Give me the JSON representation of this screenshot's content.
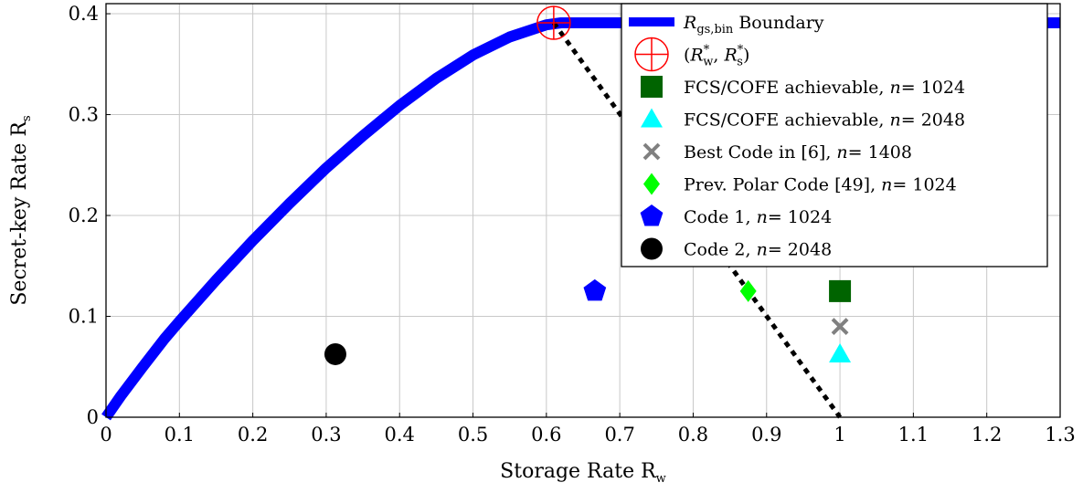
{
  "chart_data": {
    "type": "scatter",
    "title": "",
    "xlabel": "Storage Rate R",
    "xlabel_sub": "w",
    "ylabel": "Secret-key Rate R",
    "ylabel_sub": "s",
    "xlim": [
      0,
      1.3
    ],
    "ylim": [
      0,
      0.41
    ],
    "xticks": [
      0,
      0.1,
      0.2,
      0.3,
      0.4,
      0.5,
      0.6,
      0.7,
      0.8,
      0.9,
      1,
      1.1,
      1.2,
      1.3
    ],
    "xtick_labels": [
      "0",
      "0.1",
      "0.2",
      "0.3",
      "0.4",
      "0.5",
      "0.6",
      "0.7",
      "0.8",
      "0.9",
      "1",
      "1.1",
      "1.2",
      "1.3"
    ],
    "yticks": [
      0,
      0.1,
      0.2,
      0.3,
      0.4
    ],
    "ytick_labels": [
      "0",
      "0.1",
      "0.2",
      "0.3",
      "0.4"
    ],
    "grid": true,
    "legend_position": "top-right",
    "boundary": {
      "name_main": "R",
      "name_sub": "gs,bin",
      "name_rest": "Boundary",
      "color": "#0000ff",
      "x": [
        0,
        0.02,
        0.05,
        0.08,
        0.1,
        0.15,
        0.2,
        0.25,
        0.3,
        0.35,
        0.4,
        0.45,
        0.5,
        0.55,
        0.6,
        0.62,
        0.65,
        0.7,
        0.8,
        0.9,
        1.0,
        1.1,
        1.2,
        1.3
      ],
      "y": [
        0,
        0.021,
        0.05,
        0.078,
        0.095,
        0.136,
        0.175,
        0.212,
        0.247,
        0.279,
        0.309,
        0.336,
        0.359,
        0.377,
        0.389,
        0.391,
        0.391,
        0.391,
        0.391,
        0.391,
        0.391,
        0.391,
        0.391,
        0.391
      ]
    },
    "dotted_line": {
      "x": [
        0.61,
        1.0
      ],
      "y": [
        0.391,
        0.0
      ],
      "color": "#000000"
    },
    "points": [
      {
        "name": "(R*w, R*s)",
        "label_parts": [
          "(",
          "R",
          "*",
          "w",
          ", ",
          "R",
          "*",
          "s",
          ")"
        ],
        "marker": "oplus",
        "color": "#ff0000",
        "x": 0.61,
        "y": 0.391
      },
      {
        "name": "FCS/COFE achievable, n = 1024",
        "label_text": "FCS/COFE achievable, ",
        "label_n": "n",
        "label_val": "= 1024",
        "marker": "square",
        "color": "#006400",
        "x": 1.0,
        "y": 0.125
      },
      {
        "name": "FCS/COFE achievable, n = 2048",
        "label_text": "FCS/COFE achievable, ",
        "label_n": "n",
        "label_val": "= 2048",
        "marker": "triangle",
        "color": "#00ffff",
        "x": 1.0,
        "y": 0.0625
      },
      {
        "name": "Best Code in [6], n = 1408",
        "label_text": "Best Code in [6], ",
        "label_n": "n",
        "label_val": "= 1408",
        "marker": "cross",
        "color": "#808080",
        "x": 1.0,
        "y": 0.09
      },
      {
        "name": "Prev. Polar Code [49], n = 1024",
        "label_text": "Prev. Polar Code [49], ",
        "label_n": "n",
        "label_val": "= 1024",
        "marker": "diamond",
        "color": "#00ff00",
        "x": 0.875,
        "y": 0.125
      },
      {
        "name": "Code 1, n = 1024",
        "label_text": "Code 1, ",
        "label_n": "n",
        "label_val": "= 1024",
        "marker": "pentagon",
        "color": "#0000ff",
        "x": 0.666,
        "y": 0.125
      },
      {
        "name": "Code 2, n = 2048",
        "label_text": "Code 2, ",
        "label_n": "n",
        "label_val": "= 2048",
        "marker": "circle",
        "color": "#000000",
        "x": 0.3125,
        "y": 0.0625
      }
    ]
  }
}
